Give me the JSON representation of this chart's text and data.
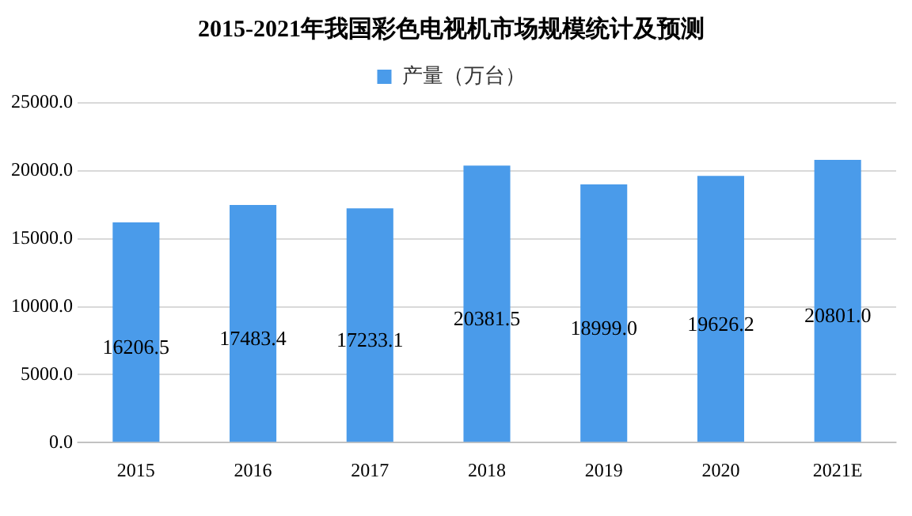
{
  "chart_data": {
    "type": "bar",
    "title": "2015-2021年我国彩色电视机市场规模统计及预测",
    "categories": [
      "2015",
      "2016",
      "2017",
      "2018",
      "2019",
      "2020",
      "2021E"
    ],
    "series": [
      {
        "name": "产量（万台）",
        "color": "#4a9bea",
        "values": [
          16206.5,
          17483.4,
          17233.1,
          20381.5,
          18999.0,
          19626.2,
          20801.0
        ]
      }
    ],
    "value_labels": [
      "16206.5",
      "17483.4",
      "17233.1",
      "20381.5",
      "18999.0",
      "19626.2",
      "20801.0"
    ],
    "ylim": [
      0,
      25000
    ],
    "yticks": [
      {
        "value": 0,
        "label": "0.0"
      },
      {
        "value": 5000,
        "label": "5000.0"
      },
      {
        "value": 10000,
        "label": "10000.0"
      },
      {
        "value": 15000,
        "label": "15000.0"
      },
      {
        "value": 20000,
        "label": "20000.0"
      },
      {
        "value": 25000,
        "label": "25000.0"
      }
    ],
    "grid": "y",
    "legend": "top"
  }
}
